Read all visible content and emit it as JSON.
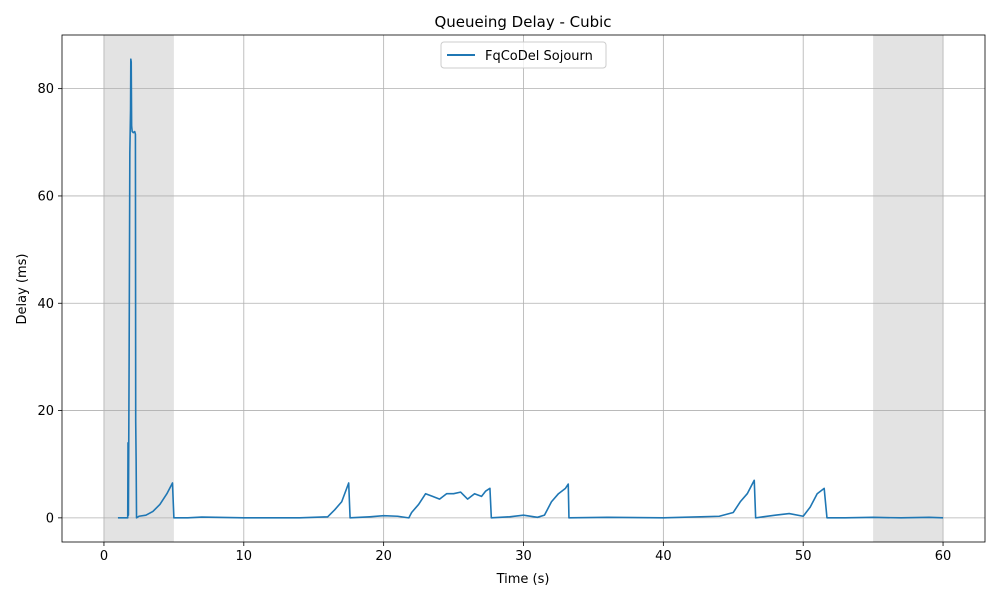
{
  "chart_data": {
    "type": "line",
    "title": "Queueing Delay - Cubic",
    "xlabel": "Time (s)",
    "ylabel": "Delay (ms)",
    "xlim": [
      -3,
      63
    ],
    "ylim": [
      -4.5,
      90
    ],
    "x_ticks": [
      0,
      10,
      20,
      30,
      40,
      50,
      60
    ],
    "y_ticks": [
      0,
      20,
      40,
      60,
      80
    ],
    "grid": true,
    "legend_position": "upper center",
    "shaded_regions": [
      {
        "start": 0,
        "end": 5,
        "color": "#e3e3e3"
      },
      {
        "start": 55,
        "end": 60,
        "color": "#e3e3e3"
      }
    ],
    "series": [
      {
        "name": "FqCoDel Sojourn",
        "color": "#1f77b4",
        "points": [
          [
            1.0,
            0.0
          ],
          [
            1.7,
            0.0
          ],
          [
            1.72,
            14.0
          ],
          [
            1.75,
            0.5
          ],
          [
            1.8,
            30.0
          ],
          [
            1.85,
            68.0
          ],
          [
            1.9,
            76.0
          ],
          [
            1.92,
            85.5
          ],
          [
            1.95,
            85.0
          ],
          [
            1.98,
            73.0
          ],
          [
            2.02,
            72.0
          ],
          [
            2.1,
            71.8
          ],
          [
            2.2,
            72.0
          ],
          [
            2.25,
            71.5
          ],
          [
            2.27,
            18.0
          ],
          [
            2.3,
            11.0
          ],
          [
            2.33,
            0.0
          ],
          [
            2.5,
            0.3
          ],
          [
            3.0,
            0.5
          ],
          [
            3.5,
            1.2
          ],
          [
            4.0,
            2.5
          ],
          [
            4.5,
            4.5
          ],
          [
            4.9,
            6.5
          ],
          [
            5.0,
            0.0
          ],
          [
            6.0,
            0.0
          ],
          [
            7.0,
            0.15
          ],
          [
            8.0,
            0.1
          ],
          [
            9.0,
            0.05
          ],
          [
            10.0,
            0.0
          ],
          [
            12.0,
            0.0
          ],
          [
            14.0,
            0.0
          ],
          [
            16.0,
            0.2
          ],
          [
            16.5,
            1.5
          ],
          [
            17.0,
            3.0
          ],
          [
            17.5,
            6.5
          ],
          [
            17.6,
            0.0
          ],
          [
            19.0,
            0.2
          ],
          [
            20.0,
            0.4
          ],
          [
            21.0,
            0.3
          ],
          [
            21.8,
            0.0
          ],
          [
            22.0,
            1.0
          ],
          [
            22.5,
            2.5
          ],
          [
            23.0,
            4.5
          ],
          [
            23.5,
            4.0
          ],
          [
            24.0,
            3.5
          ],
          [
            24.5,
            4.5
          ],
          [
            25.0,
            4.5
          ],
          [
            25.5,
            4.8
          ],
          [
            26.0,
            3.5
          ],
          [
            26.5,
            4.5
          ],
          [
            27.0,
            4.0
          ],
          [
            27.3,
            5.0
          ],
          [
            27.6,
            5.5
          ],
          [
            27.7,
            0.0
          ],
          [
            29.0,
            0.2
          ],
          [
            30.0,
            0.5
          ],
          [
            31.0,
            0.1
          ],
          [
            31.5,
            0.5
          ],
          [
            32.0,
            3.0
          ],
          [
            32.5,
            4.5
          ],
          [
            33.0,
            5.5
          ],
          [
            33.2,
            6.3
          ],
          [
            33.25,
            0.0
          ],
          [
            36.0,
            0.1
          ],
          [
            40.0,
            0.0
          ],
          [
            44.0,
            0.3
          ],
          [
            45.0,
            1.0
          ],
          [
            45.5,
            3.0
          ],
          [
            46.0,
            4.5
          ],
          [
            46.5,
            7.0
          ],
          [
            46.6,
            0.0
          ],
          [
            48.0,
            0.5
          ],
          [
            49.0,
            0.8
          ],
          [
            50.0,
            0.3
          ],
          [
            50.5,
            2.0
          ],
          [
            51.0,
            4.5
          ],
          [
            51.5,
            5.5
          ],
          [
            51.7,
            0.0
          ],
          [
            53.0,
            0.0
          ],
          [
            55.0,
            0.1
          ],
          [
            57.0,
            0.0
          ],
          [
            59.0,
            0.1
          ],
          [
            60.0,
            0.0
          ]
        ]
      }
    ]
  }
}
